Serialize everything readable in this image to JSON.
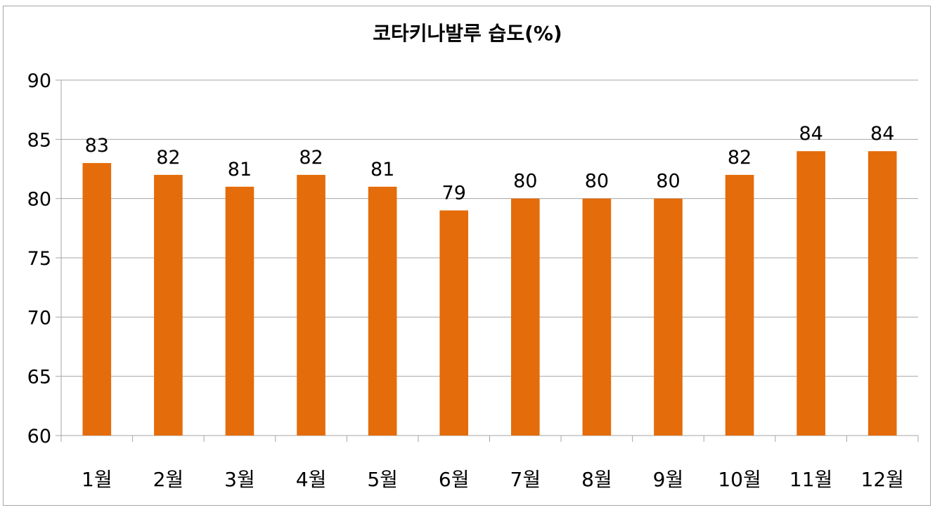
{
  "chart_data": {
    "type": "bar",
    "title": "코타키나발루 습도(%)",
    "categories": [
      "1월",
      "2월",
      "3월",
      "4월",
      "5월",
      "6월",
      "7월",
      "8월",
      "9월",
      "10월",
      "11월",
      "12월"
    ],
    "values": [
      83,
      82,
      81,
      82,
      81,
      79,
      80,
      80,
      80,
      82,
      84,
      84
    ],
    "ylim": [
      60,
      90
    ],
    "yticks": [
      60,
      65,
      70,
      75,
      80,
      85,
      90
    ],
    "grid": true,
    "bar_color": "#e46c0a",
    "grid_color": "#a6a6a6",
    "data_labels": true
  }
}
